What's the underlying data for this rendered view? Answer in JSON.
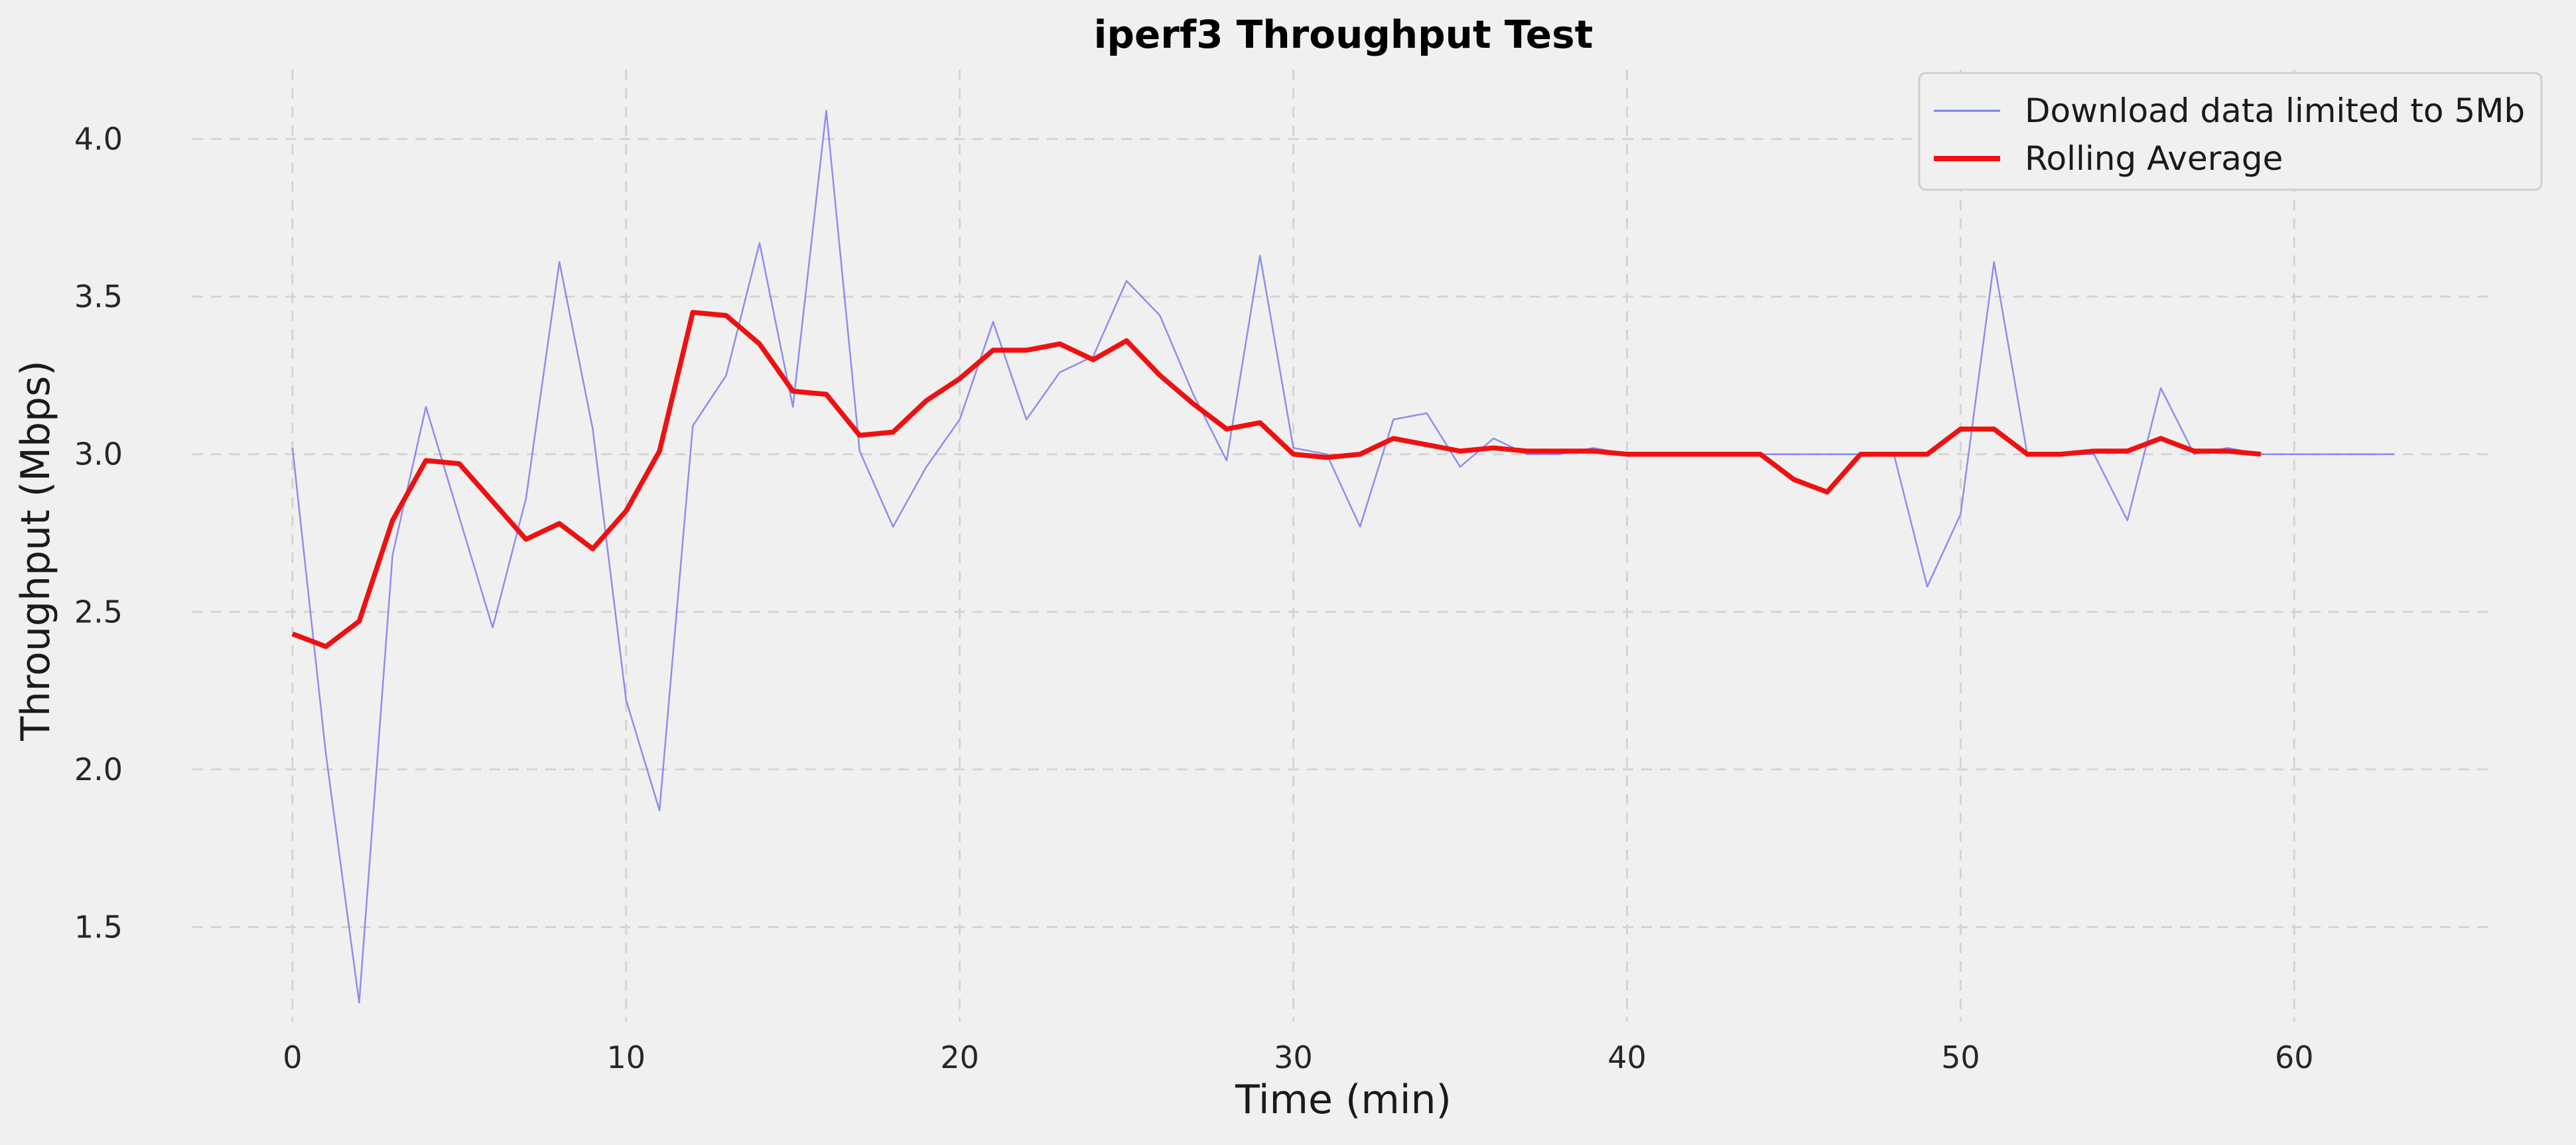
{
  "chart_data": {
    "type": "line",
    "title": "iperf3 Throughput Test",
    "xlabel": "Time (min)",
    "ylabel": "Throughput (Mbps)",
    "xlim": [
      -3,
      66
    ],
    "ylim": [
      1.2,
      4.22
    ],
    "xticks": [
      0,
      10,
      20,
      30,
      40,
      50,
      60
    ],
    "yticks": [
      1.5,
      2.0,
      2.5,
      3.0,
      3.5,
      4.0
    ],
    "ytick_labels": [
      "1.5",
      "2.0",
      "2.5",
      "3.0",
      "3.5",
      "4.0"
    ],
    "grid": true,
    "legend_position": "top-right",
    "series": [
      {
        "name": "Download data limited to 5Mb",
        "color": "#7b7bef",
        "x": [
          0,
          1,
          2,
          3,
          4,
          5,
          6,
          7,
          8,
          9,
          10,
          11,
          12,
          13,
          14,
          15,
          16,
          17,
          18,
          19,
          20,
          21,
          22,
          23,
          24,
          25,
          26,
          27,
          28,
          29,
          30,
          31,
          32,
          33,
          34,
          35,
          36,
          37,
          38,
          39,
          40,
          41,
          42,
          43,
          44,
          45,
          46,
          47,
          48,
          49,
          50,
          51,
          52,
          53,
          54,
          55,
          56,
          57,
          58,
          59,
          60,
          61,
          62,
          63
        ],
        "y": [
          3.02,
          2.05,
          1.26,
          2.68,
          3.15,
          2.8,
          2.45,
          2.86,
          3.61,
          3.08,
          2.22,
          1.87,
          3.09,
          3.25,
          3.67,
          3.15,
          4.09,
          3.01,
          2.77,
          2.96,
          3.11,
          3.42,
          3.11,
          3.26,
          3.31,
          3.55,
          3.44,
          3.19,
          2.98,
          3.63,
          3.02,
          3.0,
          2.77,
          3.11,
          3.13,
          2.96,
          3.05,
          3.0,
          3.0,
          3.02,
          3.0,
          3.0,
          3.0,
          3.0,
          3.0,
          3.0,
          3.0,
          3.0,
          3.0,
          2.58,
          2.81,
          3.61,
          3.0,
          3.0,
          3.0,
          2.79,
          3.21,
          3.0,
          3.02,
          3.0,
          3.0,
          3.0,
          3.0,
          3.0
        ]
      },
      {
        "name": "Rolling Average",
        "color": "#ee1111",
        "x": [
          0,
          1,
          2,
          3,
          4,
          5,
          6,
          7,
          8,
          9,
          10,
          11,
          12,
          13,
          14,
          15,
          16,
          17,
          18,
          19,
          20,
          21,
          22,
          23,
          24,
          25,
          26,
          27,
          28,
          29,
          30,
          31,
          32,
          33,
          34,
          35,
          36,
          37,
          38,
          39,
          40,
          41,
          42,
          43,
          44,
          45,
          46,
          47,
          48,
          49,
          50,
          51,
          52,
          53,
          54,
          55,
          56,
          57,
          58,
          59
        ],
        "y": [
          2.43,
          2.39,
          2.47,
          2.79,
          2.98,
          2.97,
          2.85,
          2.73,
          2.78,
          2.7,
          2.82,
          3.01,
          3.45,
          3.44,
          3.35,
          3.2,
          3.19,
          3.06,
          3.07,
          3.17,
          3.24,
          3.33,
          3.33,
          3.35,
          3.3,
          3.36,
          3.25,
          3.16,
          3.08,
          3.1,
          3.0,
          2.99,
          3.0,
          3.05,
          3.03,
          3.01,
          3.02,
          3.01,
          3.01,
          3.01,
          3.0,
          3.0,
          3.0,
          3.0,
          3.0,
          2.92,
          2.88,
          3.0,
          3.0,
          3.0,
          3.08,
          3.08,
          3.0,
          3.0,
          3.01,
          3.01,
          3.05,
          3.01,
          3.01,
          3.0
        ]
      }
    ]
  }
}
